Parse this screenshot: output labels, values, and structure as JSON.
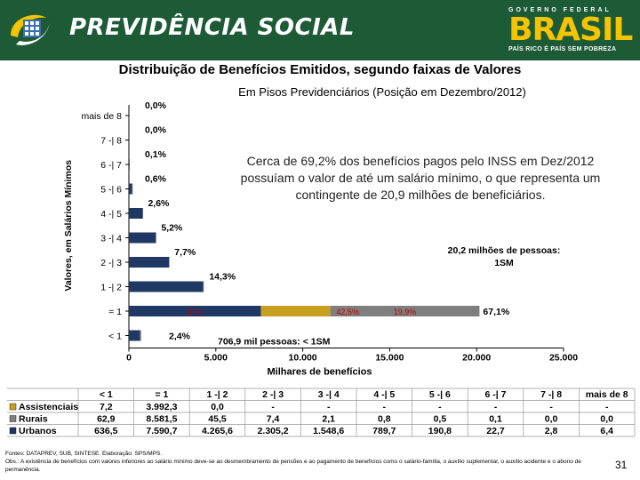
{
  "header": {
    "brand": "PREVIDÊNCIA SOCIAL",
    "gov_top": "GOVERNO FEDERAL",
    "gov_word": "BRASIL",
    "gov_slogan": "PAÍS RICO É PAÍS SEM POBREZA"
  },
  "title": "Distribuição de Benefícios Emitidos, segundo faixas de Valores",
  "subtitle": "Em Pisos Previdenciários (Posição em Dezembro/2012)",
  "annotation": "Cerca de 69,2% dos benefícios pagos pelo INSS em Dez/2012 possuíam o valor de até um salário mínimo, o que representa um contingente de 20,9 milhões de beneficiários.",
  "chart_data": {
    "type": "bar",
    "orientation": "horizontal",
    "stacked": true,
    "ylabel": "Valores, em Salários Mínimos",
    "xlabel": "Milhares de benefícios",
    "xlim": [
      0,
      25000
    ],
    "xticks": [
      "0",
      "5.000",
      "10.000",
      "15.000",
      "20.000",
      "25.000"
    ],
    "xtick_values": [
      0,
      5000,
      10000,
      15000,
      20000,
      25000
    ],
    "categories": [
      "< 1",
      "= 1",
      "1 -| 2",
      "2 -| 3",
      "3 -| 4",
      "4 -| 5",
      "5 -| 6",
      "6 -| 7",
      "7 -| 8",
      "mais de 8"
    ],
    "series": [
      {
        "name": "Assistenciais",
        "color": "#c8a020",
        "values": [
          7.2,
          3992.3,
          0.0,
          0,
          0,
          0,
          0,
          0,
          0,
          0
        ]
      },
      {
        "name": "Rurais",
        "color": "#7f7f7f",
        "values": [
          62.9,
          8581.5,
          45.5,
          7.4,
          2.1,
          0.8,
          0.5,
          0.1,
          0.0,
          0.0
        ]
      },
      {
        "name": "Urbanos",
        "color": "#1f3864",
        "values": [
          636.5,
          7590.7,
          4265.6,
          2305.2,
          1548.6,
          789.7,
          190.8,
          22.7,
          2.8,
          6.4
        ]
      }
    ],
    "bar_percent_labels": [
      "2,4%",
      "67,1%",
      "14,3%",
      "7,7%",
      "5,2%",
      "2,6%",
      "0,6%",
      "0,1%",
      "0,0%",
      "0,0%"
    ],
    "inbar_segment_labels": [
      "37,6",
      "42,5%",
      "19,9%"
    ],
    "callouts": [
      {
        "text": "706,9  mil pessoas: < 1SM"
      },
      {
        "text": "20,2 milhões de pessoas: 1SM"
      }
    ],
    "table": {
      "columns": [
        "< 1",
        "= 1",
        "1 -| 2",
        "2 -| 3",
        "3 -| 4",
        "4 -| 5",
        "5 -| 6",
        "6 -| 7",
        "7 -| 8",
        "mais de 8"
      ],
      "rows": [
        {
          "label": "Assistenciais",
          "cells": [
            "7,2",
            "3.992,3",
            "0,0",
            "-",
            "-",
            "-",
            "-",
            "-",
            "-",
            "-"
          ]
        },
        {
          "label": "Rurais",
          "cells": [
            "62,9",
            "8.581,5",
            "45,5",
            "7,4",
            "2,1",
            "0,8",
            "0,5",
            "0,1",
            "0,0",
            "0,0"
          ]
        },
        {
          "label": "Urbanos",
          "cells": [
            "636,5",
            "7.590,7",
            "4.265,6",
            "2.305,2",
            "1.548,6",
            "789,7",
            "190,8",
            "22,7",
            "2,8",
            "6,4"
          ]
        }
      ]
    }
  },
  "footer": {
    "source": "Fontes: DATAPREV, SUB, SINTESE. Elaboração: SPS/MPS.",
    "note": "Obs.: A existência de benefícios com valores inferiores ao salário mínimo deve-se ao desmembramento de pensões e ao pagamento de benefícios como o salário-família, o auxílio suplementar, o auxílio acidente e o abono de permanência.",
    "page": "31"
  }
}
